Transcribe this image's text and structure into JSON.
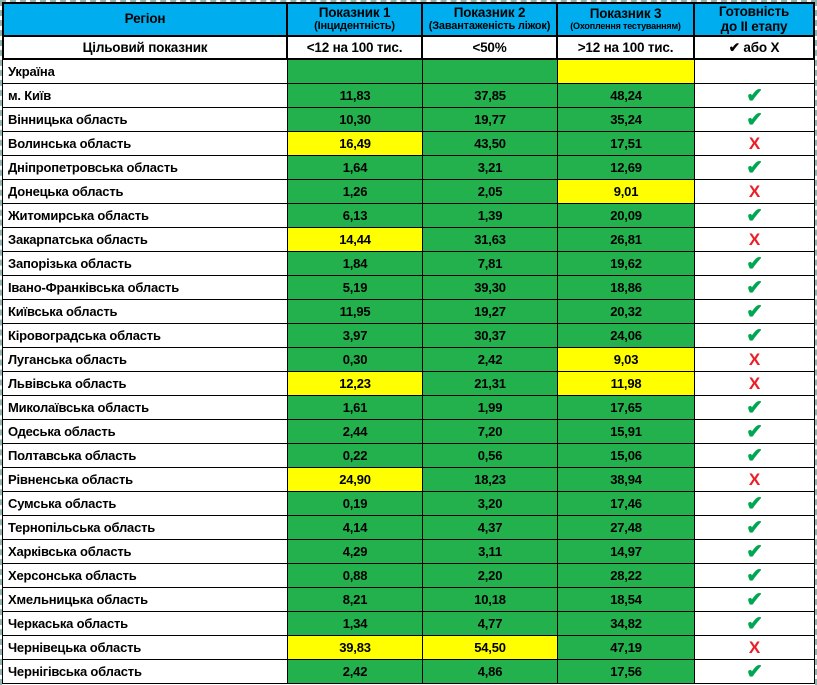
{
  "colors": {
    "header_blue": "#00AEEF",
    "cell_green": "#22B14C",
    "cell_yellow": "#FFFF00",
    "cell_gray": "#C4C4C4",
    "check_green": "#00A651",
    "cross_red": "#EC1C24",
    "border_black": "#000000"
  },
  "icons": {
    "check_icon": "✔",
    "cross_icon": "X"
  },
  "chart_data": {
    "type": "table",
    "header": {
      "region": "Регіон",
      "col1_title": "Показник 1",
      "col1_sub": "(Інцидентність)",
      "col2_title": "Показник 2",
      "col2_sub": "(Завантаженість ліжок)",
      "col3_title": "Показник 3",
      "col3_sub": "(Охоплення тестуванням)",
      "readiness_line1": "Готовність",
      "readiness_line2": "до II етапу"
    },
    "target_row": {
      "label": "Цільовий показник",
      "ind1": "<12 на 100 тис.",
      "ind2": "<50%",
      "ind3": ">12 на 100 тис.",
      "readiness": "✔ або Х"
    },
    "rows": [
      {
        "region": "Україна",
        "values": [
          "",
          "",
          ""
        ],
        "flags": [
          "g",
          "g",
          "y"
        ],
        "ready": "gray"
      },
      {
        "region": "м. Київ",
        "values": [
          "11,83",
          "37,85",
          "48,24"
        ],
        "flags": [
          "g",
          "g",
          "g"
        ],
        "ready": "check"
      },
      {
        "region": "Вінницька область",
        "values": [
          "10,30",
          "19,77",
          "35,24"
        ],
        "flags": [
          "g",
          "g",
          "g"
        ],
        "ready": "check"
      },
      {
        "region": "Волинська область",
        "values": [
          "16,49",
          "43,50",
          "17,51"
        ],
        "flags": [
          "y",
          "g",
          "g"
        ],
        "ready": "cross"
      },
      {
        "region": "Дніпропетровська область",
        "values": [
          "1,64",
          "3,21",
          "12,69"
        ],
        "flags": [
          "g",
          "g",
          "g"
        ],
        "ready": "check"
      },
      {
        "region": "Донецька область",
        "values": [
          "1,26",
          "2,05",
          "9,01"
        ],
        "flags": [
          "g",
          "g",
          "y"
        ],
        "ready": "cross"
      },
      {
        "region": "Житомирська область",
        "values": [
          "6,13",
          "1,39",
          "20,09"
        ],
        "flags": [
          "g",
          "g",
          "g"
        ],
        "ready": "check"
      },
      {
        "region": "Закарпатська область",
        "values": [
          "14,44",
          "31,63",
          "26,81"
        ],
        "flags": [
          "y",
          "g",
          "g"
        ],
        "ready": "cross"
      },
      {
        "region": "Запорізька область",
        "values": [
          "1,84",
          "7,81",
          "19,62"
        ],
        "flags": [
          "g",
          "g",
          "g"
        ],
        "ready": "check"
      },
      {
        "region": "Івано-Франківська область",
        "values": [
          "5,19",
          "39,30",
          "18,86"
        ],
        "flags": [
          "g",
          "g",
          "g"
        ],
        "ready": "check"
      },
      {
        "region": "Київська область",
        "values": [
          "11,95",
          "19,27",
          "20,32"
        ],
        "flags": [
          "g",
          "g",
          "g"
        ],
        "ready": "check"
      },
      {
        "region": "Кіровоградська область",
        "values": [
          "3,97",
          "30,37",
          "24,06"
        ],
        "flags": [
          "g",
          "g",
          "g"
        ],
        "ready": "check"
      },
      {
        "region": "Луганська область",
        "values": [
          "0,30",
          "2,42",
          "9,03"
        ],
        "flags": [
          "g",
          "g",
          "y"
        ],
        "ready": "cross"
      },
      {
        "region": "Львівська область",
        "values": [
          "12,23",
          "21,31",
          "11,98"
        ],
        "flags": [
          "y",
          "g",
          "y"
        ],
        "ready": "cross"
      },
      {
        "region": "Миколаївська область",
        "values": [
          "1,61",
          "1,99",
          "17,65"
        ],
        "flags": [
          "g",
          "g",
          "g"
        ],
        "ready": "check"
      },
      {
        "region": "Одеська область",
        "values": [
          "2,44",
          "7,20",
          "15,91"
        ],
        "flags": [
          "g",
          "g",
          "g"
        ],
        "ready": "check"
      },
      {
        "region": "Полтавська область",
        "values": [
          "0,22",
          "0,56",
          "15,06"
        ],
        "flags": [
          "g",
          "g",
          "g"
        ],
        "ready": "check"
      },
      {
        "region": "Рівненська область",
        "values": [
          "24,90",
          "18,23",
          "38,94"
        ],
        "flags": [
          "y",
          "g",
          "g"
        ],
        "ready": "cross"
      },
      {
        "region": "Сумська область",
        "values": [
          "0,19",
          "3,20",
          "17,46"
        ],
        "flags": [
          "g",
          "g",
          "g"
        ],
        "ready": "check"
      },
      {
        "region": "Тернопільська область",
        "values": [
          "4,14",
          "4,37",
          "27,48"
        ],
        "flags": [
          "g",
          "g",
          "g"
        ],
        "ready": "check"
      },
      {
        "region": "Харківська область",
        "values": [
          "4,29",
          "3,11",
          "14,97"
        ],
        "flags": [
          "g",
          "g",
          "g"
        ],
        "ready": "check"
      },
      {
        "region": "Херсонська область",
        "values": [
          "0,88",
          "2,20",
          "28,22"
        ],
        "flags": [
          "g",
          "g",
          "g"
        ],
        "ready": "check"
      },
      {
        "region": "Хмельницька область",
        "values": [
          "8,21",
          "10,18",
          "18,54"
        ],
        "flags": [
          "g",
          "g",
          "g"
        ],
        "ready": "check"
      },
      {
        "region": "Черкаська область",
        "values": [
          "1,34",
          "4,77",
          "34,82"
        ],
        "flags": [
          "g",
          "g",
          "g"
        ],
        "ready": "check"
      },
      {
        "region": "Чернівецька область",
        "values": [
          "39,83",
          "54,50",
          "47,19"
        ],
        "flags": [
          "y",
          "y",
          "g"
        ],
        "ready": "cross"
      },
      {
        "region": "Чернігівська область",
        "values": [
          "2,42",
          "4,86",
          "17,56"
        ],
        "flags": [
          "g",
          "g",
          "g"
        ],
        "ready": "check"
      }
    ]
  }
}
